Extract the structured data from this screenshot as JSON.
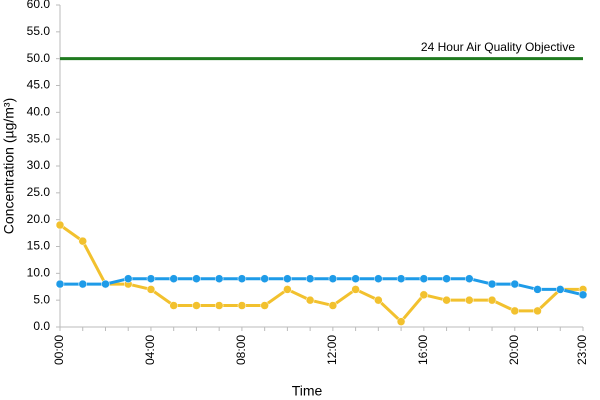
{
  "chart_data": {
    "type": "line",
    "x_label": "Time",
    "y_label": "Concentration (µg/m³)",
    "categories": [
      "00:00",
      null,
      null,
      null,
      "04:00",
      null,
      null,
      null,
      "08:00",
      null,
      null,
      null,
      "12:00",
      null,
      null,
      null,
      "16:00",
      null,
      null,
      null,
      "20:00",
      null,
      null,
      "23:00"
    ],
    "series": [
      {
        "color": "#f2c12e",
        "values": [
          19,
          16,
          8,
          8,
          7,
          4,
          4,
          4,
          4,
          4,
          7,
          5,
          4,
          7,
          5,
          1,
          6,
          5,
          5,
          5,
          3,
          3,
          7,
          7
        ]
      },
      {
        "color": "#1e9be8",
        "values": [
          8,
          8,
          8,
          9,
          9,
          9,
          9,
          9,
          9,
          9,
          9,
          9,
          9,
          9,
          9,
          9,
          9,
          9,
          9,
          8,
          8,
          7,
          7,
          6
        ]
      }
    ],
    "reference_lines": [
      {
        "value": 50,
        "label": "24 Hour Air Quality Objective",
        "color": "#1f7a1f"
      }
    ],
    "ylim": [
      0,
      60
    ],
    "yticks": [
      {
        "value": 0,
        "label": "0.0"
      },
      {
        "value": 5,
        "label": "5.0"
      },
      {
        "value": 10,
        "label": "10.0"
      },
      {
        "value": 15,
        "label": "15.0"
      },
      {
        "value": 20,
        "label": "20.0"
      },
      {
        "value": 25,
        "label": "25.0"
      },
      {
        "value": 30,
        "label": "30.0"
      },
      {
        "value": 35,
        "label": "35.0"
      },
      {
        "value": 40,
        "label": "40.0"
      },
      {
        "value": 45,
        "label": "45.0"
      },
      {
        "value": 50,
        "label": "50.0"
      },
      {
        "value": 55,
        "label": "55.0"
      },
      {
        "value": 60,
        "label": "60.0"
      }
    ],
    "grid": false
  }
}
